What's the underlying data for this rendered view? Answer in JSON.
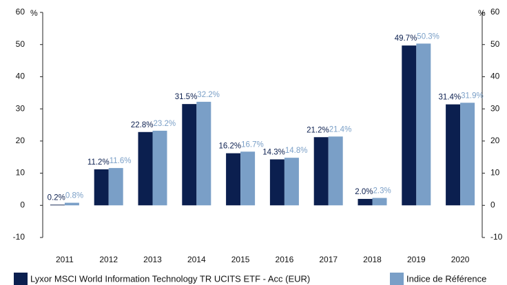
{
  "chart_data": {
    "type": "bar",
    "categories": [
      "2011",
      "2012",
      "2013",
      "2014",
      "2015",
      "2016",
      "2017",
      "2018",
      "2019",
      "2020"
    ],
    "series": [
      {
        "name": "Lyxor MSCI World Information Technology TR UCITS ETF - Acc (EUR)",
        "color": "#0b1f4f",
        "values": [
          0.2,
          11.2,
          22.8,
          31.5,
          16.2,
          14.3,
          21.2,
          2.0,
          49.7,
          31.4
        ],
        "value_labels": [
          "0.2%",
          "11.2%",
          "22.8%",
          "31.5%",
          "16.2%",
          "14.3%",
          "21.2%",
          "2.0%",
          "49.7%",
          "31.4%"
        ]
      },
      {
        "name": "Indice de Référence",
        "color": "#7a9fc7",
        "values": [
          0.8,
          11.6,
          23.2,
          32.2,
          16.7,
          14.8,
          21.4,
          2.3,
          50.3,
          31.9
        ],
        "value_labels": [
          "0.8%",
          "11.6%",
          "23.2%",
          "32.2%",
          "16.7%",
          "14.8%",
          "21.4%",
          "2.3%",
          "50.3%",
          "31.9%"
        ]
      }
    ],
    "yunit": "%",
    "y2unit": "%",
    "ylim": [
      -10,
      60
    ],
    "yticks": [
      -10,
      0,
      10,
      20,
      30,
      40,
      50,
      60
    ],
    "y2lim": [
      -10,
      60
    ],
    "y2ticks": [
      -10,
      0,
      10,
      20,
      30,
      40,
      50,
      60
    ],
    "legend": "bottom"
  }
}
